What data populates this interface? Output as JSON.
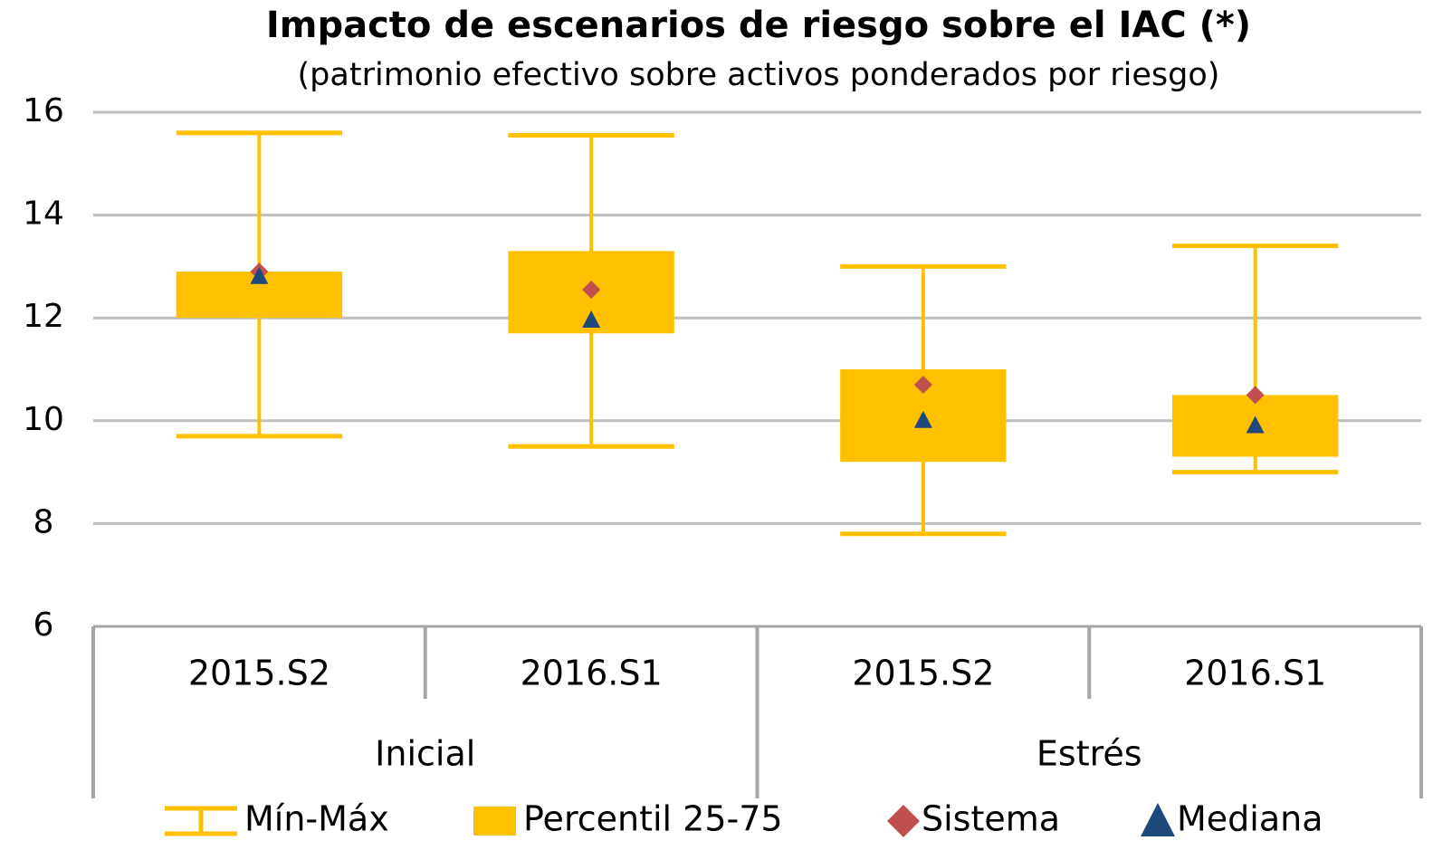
{
  "chart_data": {
    "type": "box",
    "title": "Impacto de escenarios de riesgo  sobre el IAC (*)",
    "subtitle": "(patrimonio efectivo sobre activos ponderados por riesgo)",
    "categories": [
      "2015.S2",
      "2016.S1",
      "2015.S2",
      "2016.S1"
    ],
    "groups": [
      {
        "label": "Inicial",
        "size": 2
      },
      {
        "label": "Estrés",
        "size": 2
      }
    ],
    "series": [
      {
        "name": "Mín-Máx",
        "color": "#ffc000",
        "low": [
          9.7,
          9.5,
          7.8,
          9.0
        ],
        "high": [
          15.6,
          15.55,
          13.0,
          13.4
        ]
      },
      {
        "name": "Percentil 25-75",
        "color": "#ffc000",
        "low": [
          12.0,
          11.7,
          9.2,
          9.3
        ],
        "high": [
          12.9,
          13.3,
          11.0,
          10.5
        ]
      },
      {
        "name": "Sistema",
        "color": "#c0504d",
        "values": [
          12.9,
          12.55,
          10.7,
          10.5
        ]
      },
      {
        "name": "Mediana",
        "color": "#1f497d",
        "values": [
          12.8,
          11.95,
          10.0,
          9.9
        ]
      }
    ],
    "ylim": [
      6,
      16
    ],
    "yticks": [
      6,
      8,
      10,
      12,
      14,
      16
    ],
    "grid": true
  }
}
